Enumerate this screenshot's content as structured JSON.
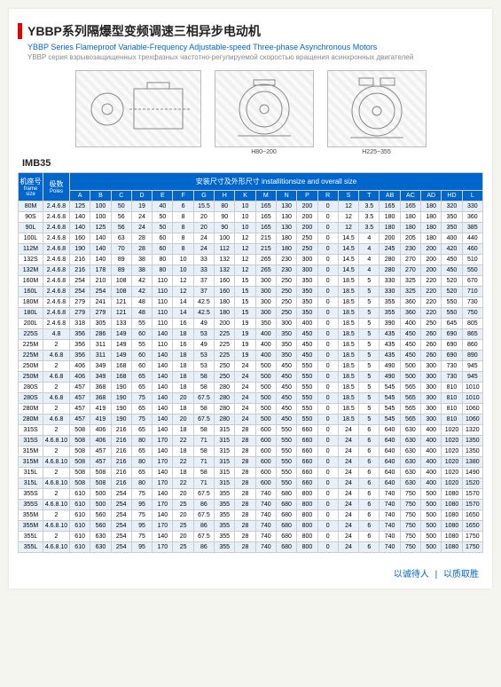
{
  "brand_bar_color": "#e30000",
  "title_cn": "YBBP系列隔爆型变频调速三相异步电动机",
  "title_en": "YBBP Series Flameproof Variable-Frequency Adjustable-speed Three-phase Asynchronous Motors",
  "title_ru": "YBBP серия взрывозащищенных трехфазных частотно-регулируемой скоростью вращения асинхронных двигателей",
  "diagram_captions": [
    "",
    "H80~200",
    "H225~355"
  ],
  "imb_label": "IMB35",
  "table_caption": "安装尺寸及外形尺寸 installitionsize and overall size",
  "frame_header_cn": "机座号",
  "frame_header_en": "frame size",
  "poles_header_cn": "极数",
  "poles_header_en": "Poles",
  "columns": [
    "A",
    "B",
    "C",
    "D",
    "E",
    "F",
    "G",
    "H",
    "K",
    "M",
    "N",
    "P",
    "R",
    "S",
    "T",
    "AB",
    "AC",
    "AD",
    "HD",
    "L"
  ],
  "rows": [
    [
      "80M",
      "2.4.6.8",
      "125",
      "100",
      "50",
      "19",
      "40",
      "6",
      "15.5",
      "80",
      "10",
      "165",
      "130",
      "200",
      "0",
      "12",
      "3.5",
      "165",
      "165",
      "180",
      "320",
      "330"
    ],
    [
      "90S",
      "2.4.6.8",
      "140",
      "100",
      "56",
      "24",
      "50",
      "8",
      "20",
      "90",
      "10",
      "165",
      "130",
      "200",
      "0",
      "12",
      "3.5",
      "180",
      "180",
      "180",
      "350",
      "360"
    ],
    [
      "90L",
      "2.4.6.8",
      "140",
      "125",
      "56",
      "24",
      "50",
      "8",
      "20",
      "90",
      "10",
      "165",
      "130",
      "200",
      "0",
      "12",
      "3.5",
      "180",
      "180",
      "180",
      "350",
      "385"
    ],
    [
      "100L",
      "2.4.6.8",
      "160",
      "140",
      "63",
      "28",
      "60",
      "8",
      "24",
      "100",
      "12",
      "215",
      "180",
      "250",
      "0",
      "14.5",
      "4",
      "200",
      "205",
      "180",
      "400",
      "440"
    ],
    [
      "112M",
      "2.4.6.8",
      "190",
      "140",
      "70",
      "28",
      "60",
      "8",
      "24",
      "112",
      "12",
      "215",
      "180",
      "250",
      "0",
      "14.5",
      "4",
      "245",
      "230",
      "200",
      "420",
      "460"
    ],
    [
      "132S",
      "2.4.6.8",
      "216",
      "140",
      "89",
      "38",
      "80",
      "10",
      "33",
      "132",
      "12",
      "265",
      "230",
      "300",
      "0",
      "14.5",
      "4",
      "280",
      "270",
      "200",
      "450",
      "510"
    ],
    [
      "132M",
      "2.4.6.8",
      "216",
      "178",
      "89",
      "38",
      "80",
      "10",
      "33",
      "132",
      "12",
      "265",
      "230",
      "300",
      "0",
      "14.5",
      "4",
      "280",
      "270",
      "200",
      "450",
      "550"
    ],
    [
      "160M",
      "2.4.6.8",
      "254",
      "210",
      "108",
      "42",
      "110",
      "12",
      "37",
      "160",
      "15",
      "300",
      "250",
      "350",
      "0",
      "18.5",
      "5",
      "330",
      "325",
      "220",
      "520",
      "670"
    ],
    [
      "160L",
      "2.4.6.8",
      "254",
      "254",
      "108",
      "42",
      "110",
      "12",
      "37",
      "160",
      "15",
      "300",
      "250",
      "350",
      "0",
      "18.5",
      "5",
      "330",
      "325",
      "220",
      "520",
      "710"
    ],
    [
      "180M",
      "2.4.6.8",
      "279",
      "241",
      "121",
      "48",
      "110",
      "14",
      "42.5",
      "180",
      "15",
      "300",
      "250",
      "350",
      "0",
      "18.5",
      "5",
      "355",
      "360",
      "220",
      "550",
      "730"
    ],
    [
      "180L",
      "2.4.6.8",
      "279",
      "279",
      "121",
      "48",
      "110",
      "14",
      "42.5",
      "180",
      "15",
      "300",
      "250",
      "350",
      "0",
      "18.5",
      "5",
      "355",
      "360",
      "220",
      "550",
      "750"
    ],
    [
      "200L",
      "2.4.6.8",
      "318",
      "305",
      "133",
      "55",
      "110",
      "16",
      "49",
      "200",
      "19",
      "350",
      "300",
      "400",
      "0",
      "18.5",
      "5",
      "390",
      "400",
      "250",
      "645",
      "805"
    ],
    [
      "225S",
      "4.8",
      "356",
      "286",
      "149",
      "60",
      "140",
      "18",
      "53",
      "225",
      "19",
      "400",
      "350",
      "450",
      "0",
      "18.5",
      "5",
      "435",
      "450",
      "260",
      "690",
      "865"
    ],
    [
      "225M",
      "2",
      "356",
      "311",
      "149",
      "55",
      "110",
      "16",
      "49",
      "225",
      "19",
      "400",
      "350",
      "450",
      "0",
      "18.5",
      "5",
      "435",
      "450",
      "260",
      "690",
      "860"
    ],
    [
      "225M",
      "4.6.8",
      "356",
      "311",
      "149",
      "60",
      "140",
      "18",
      "53",
      "225",
      "19",
      "400",
      "350",
      "450",
      "0",
      "18.5",
      "5",
      "435",
      "450",
      "260",
      "690",
      "890"
    ],
    [
      "250M",
      "2",
      "406",
      "349",
      "168",
      "60",
      "140",
      "18",
      "53",
      "250",
      "24",
      "500",
      "450",
      "550",
      "0",
      "18.5",
      "5",
      "490",
      "500",
      "300",
      "730",
      "945"
    ],
    [
      "250M",
      "4.6.8",
      "406",
      "349",
      "168",
      "65",
      "140",
      "18",
      "58",
      "250",
      "24",
      "500",
      "450",
      "550",
      "0",
      "18.5",
      "5",
      "490",
      "500",
      "300",
      "730",
      "945"
    ],
    [
      "280S",
      "2",
      "457",
      "368",
      "190",
      "65",
      "140",
      "18",
      "58",
      "280",
      "24",
      "500",
      "450",
      "550",
      "0",
      "18.5",
      "5",
      "545",
      "565",
      "300",
      "810",
      "1010"
    ],
    [
      "280S",
      "4.6.8",
      "457",
      "368",
      "190",
      "75",
      "140",
      "20",
      "67.5",
      "280",
      "24",
      "500",
      "450",
      "550",
      "0",
      "18.5",
      "5",
      "545",
      "565",
      "300",
      "810",
      "1010"
    ],
    [
      "280M",
      "2",
      "457",
      "419",
      "190",
      "65",
      "140",
      "18",
      "58",
      "280",
      "24",
      "500",
      "450",
      "550",
      "0",
      "18.5",
      "5",
      "545",
      "565",
      "300",
      "810",
      "1060"
    ],
    [
      "280M",
      "4.6.8",
      "457",
      "419",
      "190",
      "75",
      "140",
      "20",
      "67.5",
      "280",
      "24",
      "500",
      "450",
      "550",
      "0",
      "18.5",
      "5",
      "545",
      "565",
      "300",
      "810",
      "1060"
    ],
    [
      "315S",
      "2",
      "508",
      "406",
      "216",
      "65",
      "140",
      "18",
      "58",
      "315",
      "28",
      "600",
      "550",
      "660",
      "0",
      "24",
      "6",
      "640",
      "630",
      "400",
      "1020",
      "1320"
    ],
    [
      "315S",
      "4.6.8.10",
      "508",
      "406",
      "216",
      "80",
      "170",
      "22",
      "71",
      "315",
      "28",
      "600",
      "550",
      "660",
      "0",
      "24",
      "6",
      "640",
      "630",
      "400",
      "1020",
      "1350"
    ],
    [
      "315M",
      "2",
      "508",
      "457",
      "216",
      "65",
      "140",
      "18",
      "58",
      "315",
      "28",
      "600",
      "550",
      "660",
      "0",
      "24",
      "6",
      "640",
      "630",
      "400",
      "1020",
      "1350"
    ],
    [
      "315M",
      "4.6.8.10",
      "508",
      "457",
      "216",
      "80",
      "170",
      "22",
      "71",
      "315",
      "28",
      "600",
      "550",
      "660",
      "0",
      "24",
      "6",
      "640",
      "630",
      "400",
      "1020",
      "1380"
    ],
    [
      "315L",
      "2",
      "508",
      "508",
      "216",
      "65",
      "140",
      "18",
      "58",
      "315",
      "28",
      "600",
      "550",
      "660",
      "0",
      "24",
      "6",
      "640",
      "630",
      "400",
      "1020",
      "1490"
    ],
    [
      "315L",
      "4.6.8.10",
      "508",
      "508",
      "216",
      "80",
      "170",
      "22",
      "71",
      "315",
      "28",
      "600",
      "550",
      "660",
      "0",
      "24",
      "6",
      "640",
      "630",
      "400",
      "1020",
      "1520"
    ],
    [
      "355S",
      "2",
      "610",
      "500",
      "254",
      "75",
      "140",
      "20",
      "67.5",
      "355",
      "28",
      "740",
      "680",
      "800",
      "0",
      "24",
      "6",
      "740",
      "750",
      "500",
      "1080",
      "1570"
    ],
    [
      "355S",
      "4.6.8.10",
      "610",
      "500",
      "254",
      "95",
      "170",
      "25",
      "86",
      "355",
      "28",
      "740",
      "680",
      "800",
      "0",
      "24",
      "6",
      "740",
      "750",
      "500",
      "1080",
      "1570"
    ],
    [
      "355M",
      "2",
      "610",
      "560",
      "254",
      "75",
      "140",
      "20",
      "67.5",
      "355",
      "28",
      "740",
      "680",
      "800",
      "0",
      "24",
      "6",
      "740",
      "750",
      "500",
      "1080",
      "1650"
    ],
    [
      "355M",
      "4.6.8.10",
      "610",
      "560",
      "254",
      "95",
      "170",
      "25",
      "86",
      "355",
      "28",
      "740",
      "680",
      "800",
      "0",
      "24",
      "6",
      "740",
      "750",
      "500",
      "1080",
      "1650"
    ],
    [
      "355L",
      "2",
      "610",
      "630",
      "254",
      "75",
      "140",
      "20",
      "67.5",
      "355",
      "28",
      "740",
      "680",
      "800",
      "0",
      "24",
      "6",
      "740",
      "750",
      "500",
      "1080",
      "1750"
    ],
    [
      "355L",
      "4.6.8.10",
      "610",
      "630",
      "254",
      "95",
      "170",
      "25",
      "86",
      "355",
      "28",
      "740",
      "680",
      "800",
      "0",
      "24",
      "6",
      "740",
      "750",
      "500",
      "1080",
      "1750"
    ]
  ],
  "footer_left": "以诚待人",
  "footer_right": "以质取胜"
}
